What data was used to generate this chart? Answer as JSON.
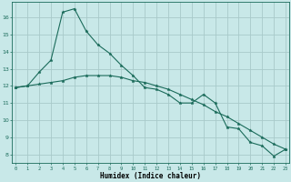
{
  "title": "",
  "xlabel": "Humidex (Indice chaleur)",
  "background_color": "#c8e8e8",
  "grid_color": "#a8caca",
  "line_color": "#1a6b5a",
  "x_ticks": [
    0,
    1,
    2,
    3,
    4,
    5,
    6,
    7,
    8,
    9,
    10,
    11,
    12,
    13,
    14,
    15,
    16,
    17,
    18,
    19,
    20,
    21,
    22,
    23
  ],
  "y_ticks": [
    8,
    9,
    10,
    11,
    12,
    13,
    14,
    15,
    16
  ],
  "ylim": [
    7.5,
    16.9
  ],
  "xlim": [
    -0.3,
    23.3
  ],
  "series": [
    {
      "x": [
        0,
        1,
        2,
        3,
        4,
        5,
        6,
        7,
        8,
        9,
        10,
        11,
        12,
        13,
        14,
        15,
        16,
        17,
        18,
        19,
        20,
        21,
        22,
        23
      ],
      "y": [
        11.9,
        12.0,
        12.8,
        13.5,
        16.3,
        16.5,
        15.2,
        14.4,
        13.9,
        13.2,
        12.6,
        11.9,
        11.8,
        11.5,
        11.0,
        11.0,
        11.5,
        11.0,
        9.6,
        9.5,
        8.7,
        8.5,
        7.9,
        8.3
      ]
    },
    {
      "x": [
        0,
        1,
        2,
        3,
        4,
        5,
        6,
        7,
        8,
        9,
        10,
        11,
        12,
        13,
        14,
        15,
        16,
        17,
        18,
        19,
        20,
        21,
        22,
        23
      ],
      "y": [
        11.9,
        12.0,
        12.1,
        12.2,
        12.3,
        12.5,
        12.6,
        12.6,
        12.6,
        12.5,
        12.3,
        12.2,
        12.0,
        11.8,
        11.5,
        11.2,
        10.9,
        10.5,
        10.2,
        9.8,
        9.4,
        9.0,
        8.6,
        8.3
      ]
    }
  ]
}
